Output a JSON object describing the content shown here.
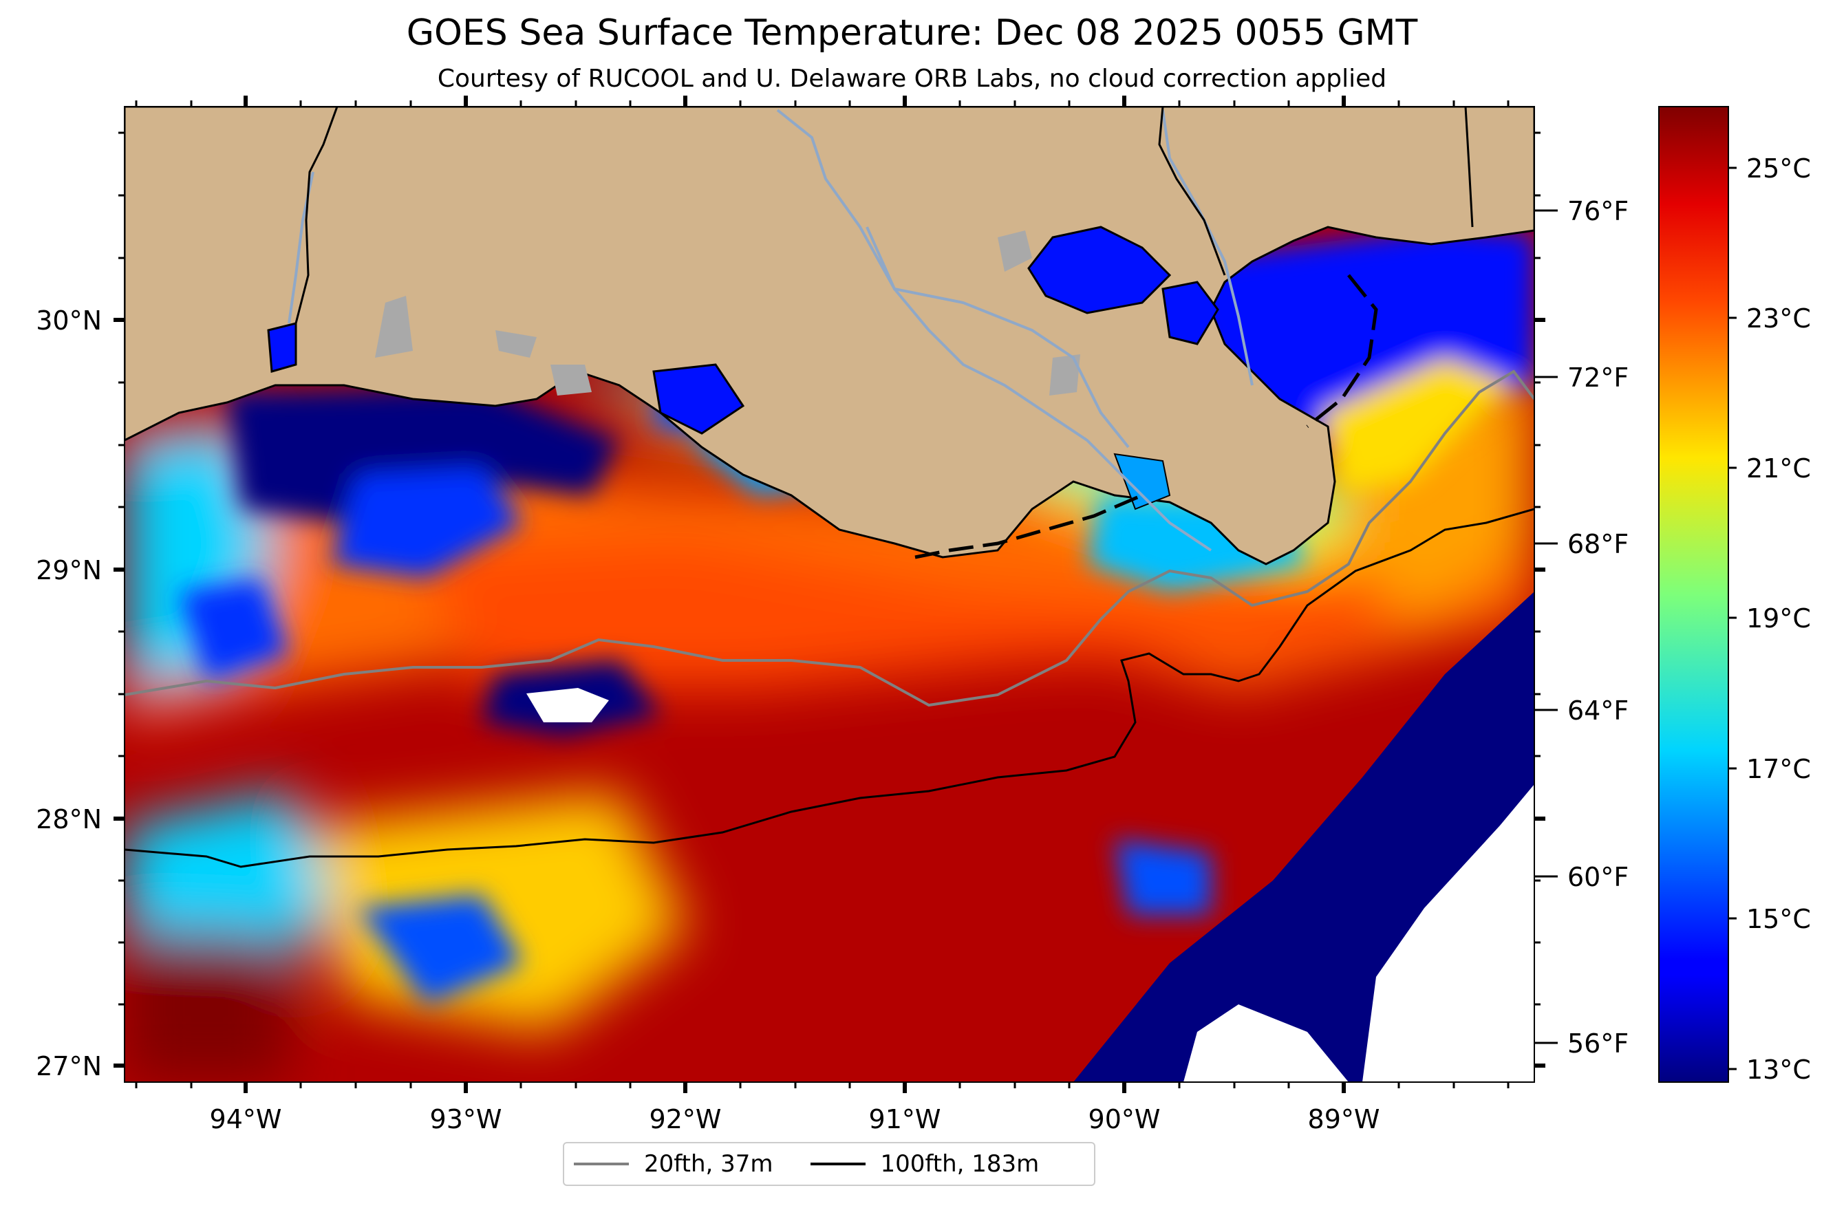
{
  "title": "GOES Sea Surface Temperature: Dec 08 2025 0055 GMT",
  "subtitle": "Courtesy of RUCOOL and U. Delaware ORB Labs, no cloud correction applied",
  "map": {
    "lat_labels": [
      "30°N",
      "29°N",
      "28°N",
      "27°N"
    ],
    "lon_labels": [
      "94°W",
      "93°W",
      "92°W",
      "91°W",
      "90°W",
      "89°W"
    ],
    "fahrenheit_labels": [
      "76°F",
      "72°F",
      "68°F",
      "64°F",
      "60°F",
      "56°F"
    ],
    "colors": {
      "land": "#d2b48c",
      "lakes": "#a9a9a9",
      "rivers": "#8fa8c8"
    }
  },
  "colorbar": {
    "labels": [
      "25°C",
      "23°C",
      "21°C",
      "19°C",
      "17°C",
      "15°C",
      "13°C"
    ],
    "colormap": "jet",
    "range_c": [
      12.8,
      26
    ]
  },
  "legend": {
    "items": [
      {
        "label": "20fth, 37m",
        "color": "#808080"
      },
      {
        "label": "100fth, 183m",
        "color": "#000000"
      }
    ]
  }
}
